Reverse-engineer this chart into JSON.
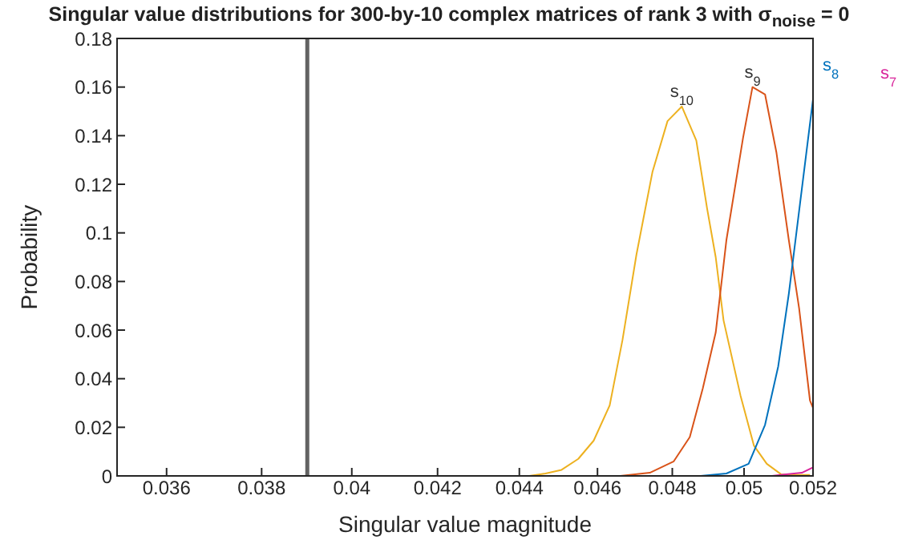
{
  "chart_data": {
    "type": "line",
    "title": "Singular value distributions for 300-by-10 complex matrices of rank 3 with σ$_{noise}$ = 0",
    "xlabel": "Singular value magnitude",
    "ylabel": "Probability",
    "log": "x",
    "xlim": [
      0.035,
      0.052
    ],
    "xticks": [
      0.036,
      0.038,
      0.04,
      0.042,
      0.044,
      0.046,
      0.048,
      0.05,
      0.052
    ],
    "ylim": [
      0,
      0.18
    ],
    "yticks": [
      0,
      0.02,
      0.04,
      0.06,
      0.08,
      0.1,
      0.12,
      0.14,
      0.16,
      0.18
    ],
    "grid": false,
    "legend": false,
    "marker": "none",
    "line_style": "solid",
    "ref_lines": [
      {
        "axis": "x",
        "value": 0.039,
        "color": "#636363"
      }
    ],
    "series": [
      {
        "name": "s$_{10}$",
        "color": "#edb120",
        "x": [
          0.04425,
          0.04466,
          0.04507,
          0.0455,
          0.0459,
          0.04632,
          0.04666,
          0.04703,
          0.04746,
          0.04787,
          0.04826,
          0.04866,
          0.04896,
          0.0492,
          0.04942,
          0.0499,
          0.05028,
          0.05065,
          0.05106,
          0.05152,
          0.05191
        ],
        "values": [
          0,
          0.001,
          0.0025,
          0.007,
          0.0145,
          0.029,
          0.056,
          0.091,
          0.125,
          0.146,
          0.152,
          0.138,
          0.11,
          0.09,
          0.064,
          0.033,
          0.0125,
          0.005,
          0.0007,
          0.0004,
          0.0004
        ]
      },
      {
        "name": "s$_{9}$",
        "color": "#d95319",
        "x": [
          0.0466,
          0.04739,
          0.04804,
          0.04848,
          0.04884,
          0.0492,
          0.0495,
          0.04997,
          0.05024,
          0.0506,
          0.05093,
          0.05129,
          0.05159,
          0.05191,
          0.052
        ],
        "values": [
          0,
          0.0013,
          0.006,
          0.016,
          0.036,
          0.059,
          0.097,
          0.139,
          0.16,
          0.157,
          0.133,
          0.097,
          0.069,
          0.031,
          0.028
        ]
      },
      {
        "name": "s$_{8}$",
        "color": "#0072bd",
        "x": [
          0.04878,
          0.0495,
          0.05013,
          0.0506,
          0.05098,
          0.05129,
          0.05144,
          0.05167,
          0.052
        ],
        "values": [
          0,
          0.001,
          0.005,
          0.021,
          0.045,
          0.075,
          0.092,
          0.118,
          0.155
        ]
      },
      {
        "name": "s$_{7}$",
        "color": "#d9259b",
        "x": [
          0.0508,
          0.0511,
          0.05167,
          0.052
        ],
        "values": [
          0,
          0.0005,
          0.0013,
          0.0035
        ]
      }
    ]
  }
}
